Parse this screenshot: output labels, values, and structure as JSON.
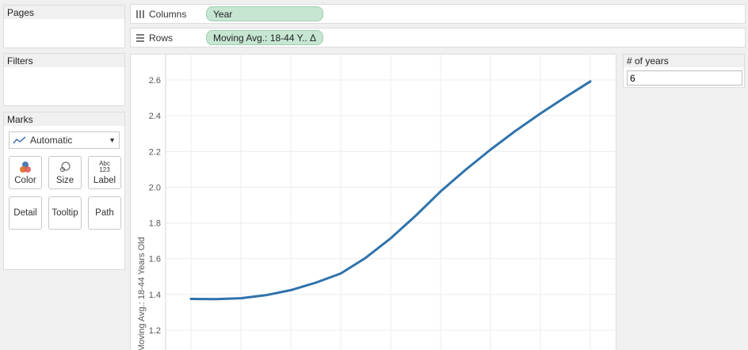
{
  "cards": {
    "pages_title": "Pages",
    "filters_title": "Filters",
    "marks_title": "Marks"
  },
  "marks": {
    "mark_type": "Automatic",
    "buttons": {
      "color": "Color",
      "size": "Size",
      "label": "Label",
      "detail": "Detail",
      "tooltip": "Tooltip",
      "path": "Path"
    },
    "label_icon_text": "Abc 123"
  },
  "shelves": {
    "columns_label": "Columns",
    "columns_pill": "Year",
    "rows_label": "Rows",
    "rows_pill": "Moving Avg.: 18-44 Y..",
    "rows_pill_icon": "delta-icon"
  },
  "parameter": {
    "title": "# of years",
    "value": "6"
  },
  "chart_data": {
    "type": "line",
    "ylabel": "Moving Avg.: 18-44 Years Old",
    "xlabel": "",
    "ylim": [
      1.2,
      2.7
    ],
    "yticks": [
      "1.2",
      "1.4",
      "1.6",
      "1.8",
      "2.0",
      "2.2",
      "2.4",
      "2.6"
    ],
    "grid": true,
    "line_color": "#2f72ab",
    "series": [
      {
        "values": [
          1.375,
          1.374,
          1.379,
          1.396,
          1.424,
          1.466,
          1.517,
          1.605,
          1.714,
          1.84,
          1.976,
          2.097,
          2.21,
          2.315,
          2.412,
          2.504,
          2.592
        ]
      }
    ]
  }
}
